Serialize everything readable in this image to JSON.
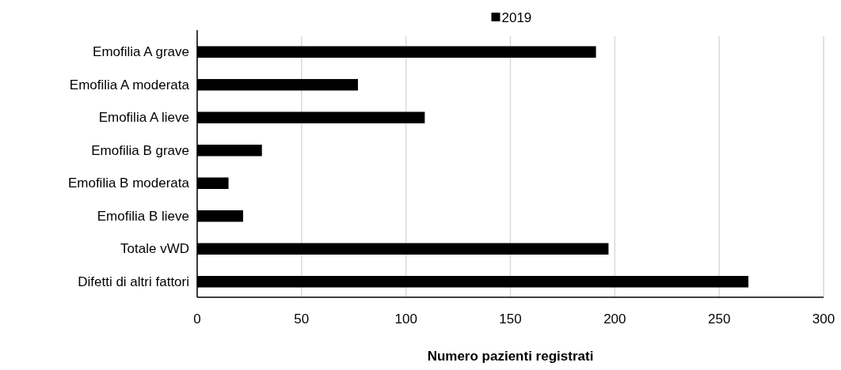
{
  "chart_data": {
    "type": "bar",
    "orientation": "horizontal",
    "categories": [
      "Emofilia A grave",
      "Emofilia A moderata",
      "Emofilia A lieve",
      "Emofilia B grave",
      "Emofilia B moderata",
      "Emofilia B lieve",
      "Totale vWD",
      "Difetti di altri fattori"
    ],
    "series": [
      {
        "name": "2019",
        "color": "#000000",
        "values": [
          191,
          77,
          109,
          31,
          15,
          22,
          197,
          264
        ]
      }
    ],
    "xlabel": "Numero pazienti registrati",
    "xlim": [
      0,
      300
    ],
    "xticks": [
      0,
      50,
      100,
      150,
      200,
      250,
      300
    ],
    "grid": "x",
    "legend": "top"
  }
}
